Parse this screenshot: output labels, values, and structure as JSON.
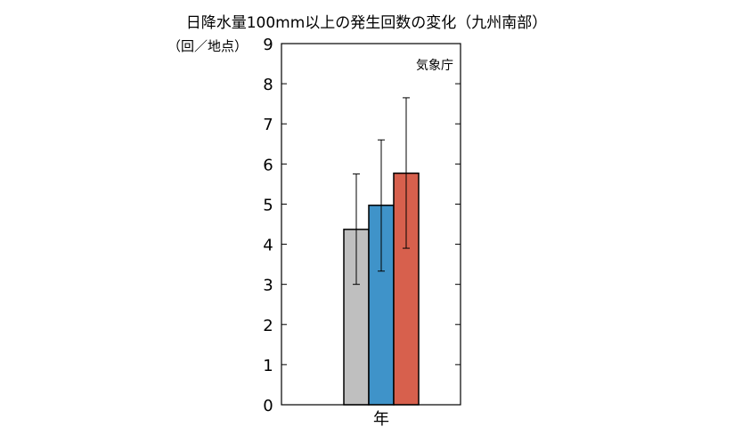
{
  "title": "日降水量100mm以上の発生回数の変化（九州南部）",
  "y_unit_label": "（回／地点）",
  "credit": "気象庁",
  "chart_data": {
    "type": "bar",
    "categories": [
      "年"
    ],
    "ylim": [
      0,
      9
    ],
    "yticks": [
      0,
      1,
      2,
      3,
      4,
      5,
      6,
      7,
      8,
      9
    ],
    "grid": false,
    "series": [
      {
        "values": [
          4.37
        ],
        "error_low": [
          3.0
        ],
        "error_high": [
          5.75
        ],
        "color": "#bfbfbf"
      },
      {
        "values": [
          4.97
        ],
        "error_low": [
          3.33
        ],
        "error_high": [
          6.6
        ],
        "color": "#3f93c9"
      },
      {
        "values": [
          5.77
        ],
        "error_low": [
          3.9
        ],
        "error_high": [
          7.65
        ],
        "color": "#d7604d"
      }
    ]
  }
}
